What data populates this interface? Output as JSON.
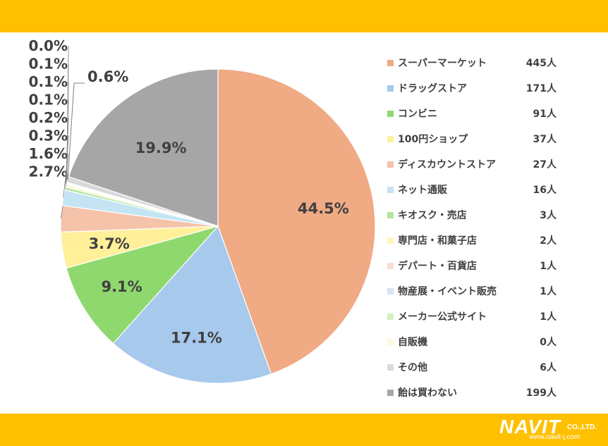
{
  "colors": {
    "band": "#FFC000",
    "label_text": "#404040"
  },
  "chart_data": {
    "type": "pie",
    "categories": [
      "スーパーマーケット",
      "ドラッグストア",
      "コンビニ",
      "100円ショップ",
      "ディスカウントストア",
      "ネット通販",
      "キオスク・売店",
      "専門店・和菓子店",
      "デパート・百貨店",
      "物産展・イベント販売",
      "メーカー公式サイト",
      "自販機",
      "その他",
      "飴は買わない"
    ],
    "values": [
      445,
      171,
      91,
      37,
      27,
      16,
      3,
      2,
      1,
      1,
      1,
      0,
      6,
      199
    ],
    "counts": [
      "445人",
      "171人",
      "91人",
      "37人",
      "27人",
      "16人",
      "3人",
      "2人",
      "1人",
      "1人",
      "1人",
      "0人",
      "6人",
      "199人"
    ],
    "percent_labels": [
      "44.5%",
      "17.1%",
      "9.1%",
      "3.7%",
      "2.7%",
      "1.6%",
      "0.3%",
      "0.2%",
      "0.1%",
      "0.1%",
      "0.1%",
      "0.0%",
      "0.6%",
      "19.9%"
    ],
    "colors": [
      "#F0AA84",
      "#A6C9EC",
      "#8FD86E",
      "#FFF099",
      "#F5C2AA",
      "#C4E4F4",
      "#B3E59F",
      "#FFF6B8",
      "#FADDD2",
      "#D6E6F4",
      "#D3F0C6",
      "#FFF9D8",
      "#D9D9D9",
      "#A6A6A6"
    ],
    "legend_position": "right"
  },
  "logo": {
    "main": "NAVIT",
    "company": "CO.,LTD.",
    "url": "www.navit-j.com"
  }
}
